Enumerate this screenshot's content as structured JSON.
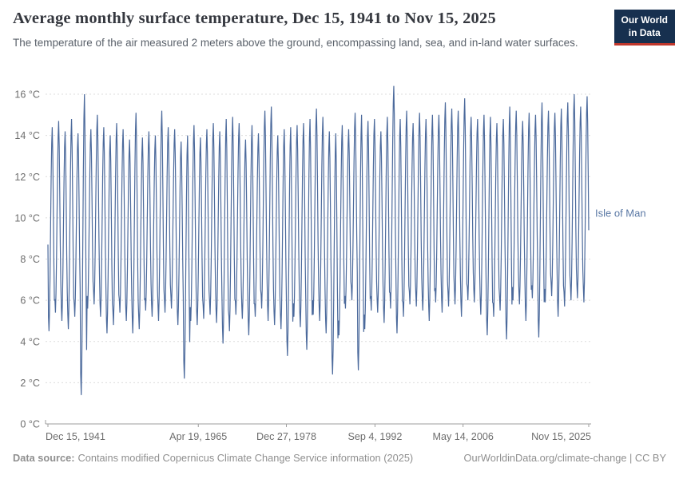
{
  "header": {
    "title": "Average monthly surface temperature, Dec 15, 1941 to Nov 15, 2025",
    "subtitle": "The temperature of the air measured 2 meters above the ground, encompassing land, sea, and in-land water surfaces."
  },
  "logo": {
    "line1": "Our World",
    "line2": "in Data"
  },
  "footer": {
    "source_label": "Data source:",
    "source_text": "Contains modified Copernicus Climate Change Service information (2025)",
    "right_text": "OurWorldinData.org/climate-change | CC BY"
  },
  "colors": {
    "line": "#4c6a9c",
    "entity_label": "#5b79a5",
    "grid": "#dcdcdc",
    "axis": "#9e9e9e",
    "logo_bg": "#17304f",
    "logo_accent": "#c0372c"
  },
  "chart_data": {
    "type": "line",
    "title": "Average monthly surface temperature, Dec 15, 1941 to Nov 15, 2025",
    "entity": "Isle of Man",
    "unit": "°C",
    "ylim": [
      0,
      16
    ],
    "grid": true,
    "legend_position": "right-of-line",
    "y_ticks": [
      {
        "value": 0,
        "label": "0 °C"
      },
      {
        "value": 2,
        "label": "2 °C"
      },
      {
        "value": 4,
        "label": "4 °C"
      },
      {
        "value": 6,
        "label": "6 °C"
      },
      {
        "value": 8,
        "label": "8 °C"
      },
      {
        "value": 10,
        "label": "10 °C"
      },
      {
        "value": 12,
        "label": "12 °C"
      },
      {
        "value": 14,
        "label": "14 °C"
      },
      {
        "value": 16,
        "label": "16 °C"
      }
    ],
    "x_ticks": [
      {
        "label": "Dec 15, 1941",
        "month": 0
      },
      {
        "label": "Apr 19, 1965",
        "month": 280
      },
      {
        "label": "Dec 27, 1978",
        "month": 444
      },
      {
        "label": "Sep 4, 1992",
        "month": 609
      },
      {
        "label": "May 14, 2006",
        "month": 773
      },
      {
        "label": "Nov 15, 2025",
        "month": 1007
      }
    ],
    "start_point": {
      "date": "Dec 1941",
      "value": 8.7
    },
    "end_month": "Nov 2025",
    "month_shape": [
      0.07,
      0,
      0.1,
      0.28,
      0.52,
      0.75,
      0.92,
      1,
      0.87,
      0.63,
      0.35,
      0.15
    ],
    "years_min_max": [
      [
        1942,
        4.5,
        14.4
      ],
      [
        1943,
        5.4,
        14.7
      ],
      [
        1944,
        5.0,
        14.2
      ],
      [
        1945,
        4.6,
        14.8
      ],
      [
        1946,
        5.2,
        14.1
      ],
      [
        1947,
        1.4,
        16.0
      ],
      [
        1948,
        5.6,
        14.3
      ],
      [
        1949,
        5.8,
        15.0
      ],
      [
        1950,
        5.2,
        14.4
      ],
      [
        1951,
        4.4,
        14.0
      ],
      [
        1952,
        4.8,
        14.6
      ],
      [
        1953,
        5.4,
        14.3
      ],
      [
        1954,
        5.0,
        13.8
      ],
      [
        1955,
        4.4,
        15.1
      ],
      [
        1956,
        4.6,
        13.9
      ],
      [
        1957,
        5.5,
        14.2
      ],
      [
        1958,
        5.2,
        14.0
      ],
      [
        1959,
        5.0,
        15.2
      ],
      [
        1960,
        5.4,
        14.4
      ],
      [
        1961,
        5.6,
        14.3
      ],
      [
        1962,
        4.8,
        13.7
      ],
      [
        1963,
        2.2,
        14.0
      ],
      [
        1964,
        5.0,
        14.5
      ],
      [
        1965,
        4.8,
        13.9
      ],
      [
        1966,
        5.1,
        14.3
      ],
      [
        1967,
        5.3,
        14.6
      ],
      [
        1968,
        4.9,
        14.2
      ],
      [
        1969,
        3.9,
        14.8
      ],
      [
        1970,
        4.5,
        14.9
      ],
      [
        1971,
        5.3,
        14.6
      ],
      [
        1972,
        5.1,
        13.8
      ],
      [
        1973,
        4.3,
        14.5
      ],
      [
        1974,
        5.2,
        14.1
      ],
      [
        1975,
        5.6,
        15.2
      ],
      [
        1976,
        5.0,
        15.4
      ],
      [
        1977,
        4.8,
        14.0
      ],
      [
        1978,
        4.6,
        14.3
      ],
      [
        1979,
        3.3,
        14.4
      ],
      [
        1980,
        5.2,
        14.5
      ],
      [
        1981,
        4.7,
        14.6
      ],
      [
        1982,
        3.6,
        14.8
      ],
      [
        1983,
        5.3,
        15.3
      ],
      [
        1984,
        5.0,
        14.9
      ],
      [
        1985,
        4.4,
        14.2
      ],
      [
        1986,
        2.4,
        14.1
      ],
      [
        1987,
        4.3,
        14.5
      ],
      [
        1988,
        5.6,
        14.3
      ],
      [
        1989,
        6.0,
        15.1
      ],
      [
        1990,
        2.6,
        15.0
      ],
      [
        1991,
        4.6,
        14.7
      ],
      [
        1992,
        5.5,
        14.8
      ],
      [
        1993,
        5.4,
        14.2
      ],
      [
        1994,
        4.9,
        14.9
      ],
      [
        1995,
        5.6,
        16.4
      ],
      [
        1996,
        4.4,
        14.8
      ],
      [
        1997,
        5.2,
        15.2
      ],
      [
        1998,
        5.8,
        14.6
      ],
      [
        1999,
        5.7,
        15.1
      ],
      [
        2000,
        5.5,
        14.8
      ],
      [
        2001,
        5.0,
        15.0
      ],
      [
        2002,
        5.9,
        15.0
      ],
      [
        2003,
        5.4,
        15.6
      ],
      [
        2004,
        5.7,
        15.3
      ],
      [
        2005,
        5.8,
        15.2
      ],
      [
        2006,
        5.2,
        15.8
      ],
      [
        2007,
        6.0,
        14.9
      ],
      [
        2008,
        5.9,
        14.8
      ],
      [
        2009,
        5.3,
        15.0
      ],
      [
        2010,
        4.3,
        14.9
      ],
      [
        2011,
        5.2,
        14.6
      ],
      [
        2012,
        5.5,
        14.8
      ],
      [
        2013,
        4.1,
        15.4
      ],
      [
        2014,
        6.0,
        15.2
      ],
      [
        2015,
        5.8,
        14.7
      ],
      [
        2016,
        5.0,
        15.1
      ],
      [
        2017,
        6.1,
        15.0
      ],
      [
        2018,
        4.2,
        15.6
      ],
      [
        2019,
        5.9,
        15.2
      ],
      [
        2020,
        6.2,
        15.1
      ],
      [
        2021,
        5.2,
        15.3
      ],
      [
        2022,
        5.7,
        15.6
      ],
      [
        2023,
        6.0,
        16.0
      ],
      [
        2024,
        6.1,
        15.4
      ],
      [
        2025,
        5.9,
        15.9
      ]
    ]
  }
}
